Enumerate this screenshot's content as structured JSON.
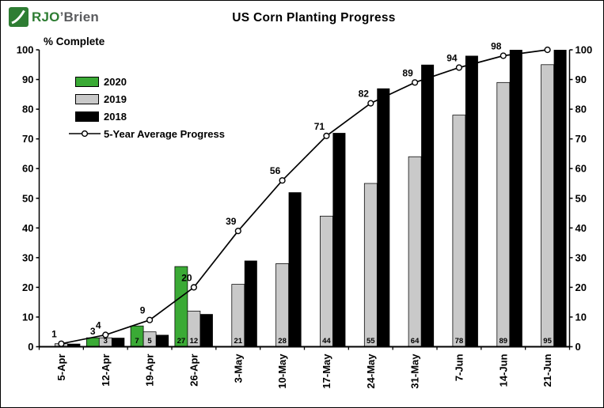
{
  "brand": {
    "primary": "RJO",
    "secondary": "’Brien"
  },
  "chart_data": {
    "type": "bar",
    "title": "US Corn Planting Progress",
    "ylabel": "% Complete",
    "ylim": [
      0,
      100
    ],
    "ytick_step": 10,
    "grid": false,
    "legend_position": "upper-left",
    "categories": [
      "5-Apr",
      "12-Apr",
      "19-Apr",
      "26-Apr",
      "3-May",
      "10-May",
      "17-May",
      "24-May",
      "31-May",
      "7-Jun",
      "14-Jun",
      "21-Jun"
    ],
    "series": [
      {
        "name": "2020",
        "color": "#3aaa35",
        "values": [
          null,
          3,
          7,
          27,
          null,
          null,
          null,
          null,
          null,
          null,
          null,
          null
        ],
        "labels": [
          "",
          "3",
          "7",
          "27",
          "",
          "",
          "",
          "",
          "",
          "",
          "",
          ""
        ]
      },
      {
        "name": "2019",
        "color": "#c9c9c9",
        "values": [
          1,
          3,
          5,
          12,
          21,
          28,
          44,
          55,
          64,
          78,
          89,
          95
        ],
        "labels": [
          "",
          "3",
          "5",
          "12",
          "21",
          "28",
          "44",
          "55",
          "64",
          "78",
          "89",
          "95"
        ]
      },
      {
        "name": "2018",
        "color": "#000000",
        "values": [
          1,
          3,
          4,
          11,
          29,
          52,
          72,
          87,
          95,
          98,
          100,
          100
        ],
        "labels": []
      }
    ],
    "average": {
      "name": "5-Year Average Progress",
      "line_color": "#000000",
      "marker_fill": "#ffffff",
      "values": [
        1,
        4,
        9,
        20,
        39,
        56,
        71,
        82,
        89,
        94,
        98,
        100
      ],
      "labels": [
        "1",
        "4",
        "9",
        "20",
        "39",
        "56",
        "71",
        "82",
        "89",
        "94",
        "98",
        ""
      ]
    }
  }
}
